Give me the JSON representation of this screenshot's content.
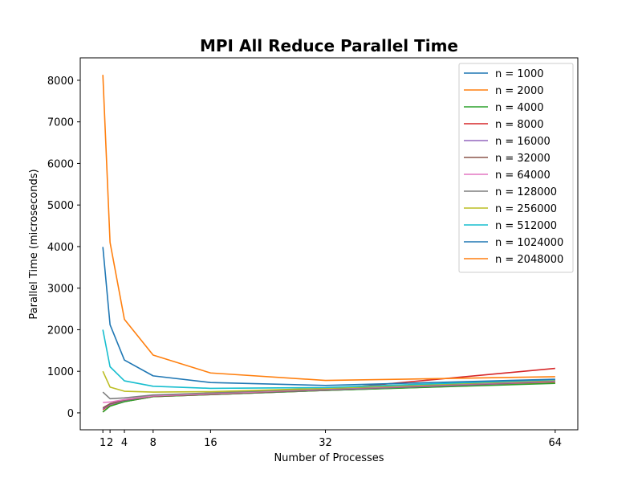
{
  "chart_data": {
    "type": "line",
    "title": "MPI All Reduce Parallel Time",
    "xlabel": "Number of Processes",
    "ylabel": "Parallel Time (microseconds)",
    "x": [
      1,
      2,
      4,
      8,
      16,
      32,
      64
    ],
    "x_ticks": [
      "1",
      "2",
      "4",
      "8",
      "16",
      "32",
      "64"
    ],
    "y_ticks": [
      0,
      1000,
      2000,
      3000,
      4000,
      5000,
      6000,
      7000,
      8000
    ],
    "xlim": [
      -2.15,
      67.15
    ],
    "ylim": [
      -407,
      8540
    ],
    "grid": false,
    "legend_position": "top-right",
    "series": [
      {
        "name": "n = 1000",
        "color": "#1f77b4",
        "values": [
          20,
          170,
          270,
          390,
          440,
          540,
          720
        ]
      },
      {
        "name": "n = 2000",
        "color": "#ff7f0e",
        "values": [
          20,
          170,
          270,
          390,
          440,
          540,
          720
        ]
      },
      {
        "name": "n = 4000",
        "color": "#2ca02c",
        "values": [
          20,
          160,
          270,
          390,
          440,
          540,
          710
        ]
      },
      {
        "name": "n = 8000",
        "color": "#d62728",
        "values": [
          80,
          200,
          310,
          400,
          450,
          560,
          1070
        ]
      },
      {
        "name": "n = 16000",
        "color": "#9467bd",
        "values": [
          100,
          200,
          300,
          400,
          450,
          550,
          750
        ]
      },
      {
        "name": "n = 32000",
        "color": "#8c564b",
        "values": [
          120,
          220,
          310,
          400,
          450,
          560,
          760
        ]
      },
      {
        "name": "n = 64000",
        "color": "#e377c2",
        "values": [
          250,
          260,
          320,
          410,
          460,
          570,
          770
        ]
      },
      {
        "name": "n = 128000",
        "color": "#7f7f7f",
        "values": [
          500,
          340,
          360,
          430,
          480,
          580,
          780
        ]
      },
      {
        "name": "n = 256000",
        "color": "#bcbd22",
        "values": [
          1000,
          620,
          520,
          500,
          510,
          590,
          790
        ]
      },
      {
        "name": "n = 512000",
        "color": "#17becf",
        "values": [
          2000,
          1110,
          770,
          640,
          590,
          610,
          800
        ]
      },
      {
        "name": "n = 1024000",
        "color": "#1f77b4",
        "values": [
          3990,
          2120,
          1270,
          890,
          730,
          660,
          810
        ]
      },
      {
        "name": "n = 2048000",
        "color": "#ff7f0e",
        "values": [
          8130,
          4100,
          2250,
          1390,
          960,
          780,
          870
        ]
      }
    ]
  }
}
